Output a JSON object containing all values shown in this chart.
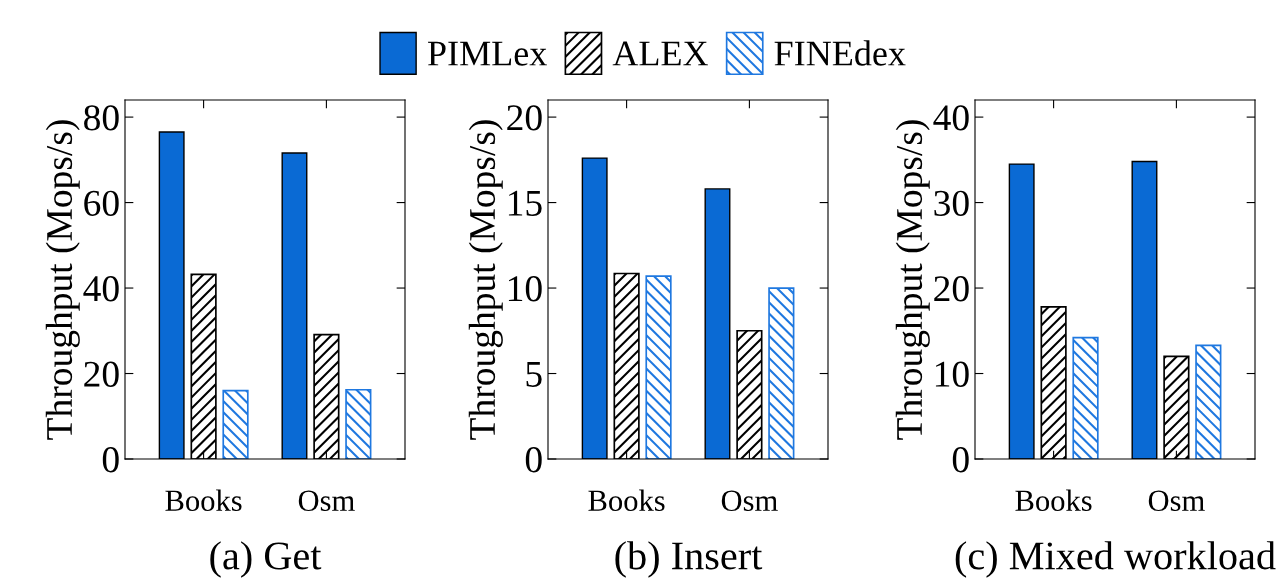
{
  "chart_data": [
    {
      "type": "bar",
      "title": "(a) Get",
      "ylabel": "Throughput (Mops/s)",
      "categories": [
        "Books",
        "Osm"
      ],
      "ylim": [
        0,
        84
      ],
      "yticks": [
        0,
        20,
        40,
        60,
        80
      ],
      "legend": "top",
      "grid": false,
      "series": [
        {
          "name": "PIMLex",
          "color": "#0a6ad4",
          "values": [
            76.5,
            71.6
          ]
        },
        {
          "name": "ALEX",
          "color": "#000000",
          "values": [
            43.2,
            29.1
          ]
        },
        {
          "name": "FINEdex",
          "color": "#1f78e0",
          "values": [
            16.0,
            16.2
          ]
        }
      ]
    },
    {
      "type": "bar",
      "title": "(b) Insert",
      "ylabel": "Throughput (Mops/s)",
      "categories": [
        "Books",
        "Osm"
      ],
      "ylim": [
        0,
        21
      ],
      "yticks": [
        0,
        5,
        10,
        15,
        20
      ],
      "grid": false,
      "series": [
        {
          "color": "#0a6ad4",
          "values": [
            17.6,
            15.8
          ]
        },
        {
          "color": "#000000",
          "values": [
            10.85,
            7.5
          ]
        },
        {
          "color": "#1f78e0",
          "values": [
            10.7,
            10.0
          ]
        }
      ]
    },
    {
      "type": "bar",
      "title": "(c) Mixed workload",
      "ylabel": "Throughput (Mops/s)",
      "categories": [
        "Books",
        "Osm"
      ],
      "ylim": [
        0,
        42
      ],
      "yticks": [
        0,
        10,
        20,
        30,
        40
      ],
      "grid": false,
      "series": [
        {
          "color": "#0a6ad4",
          "values": [
            34.5,
            34.8
          ]
        },
        {
          "color": "#000000",
          "values": [
            17.8,
            12.0
          ]
        },
        {
          "color": "#1f78e0",
          "values": [
            14.2,
            13.3
          ]
        }
      ]
    }
  ]
}
